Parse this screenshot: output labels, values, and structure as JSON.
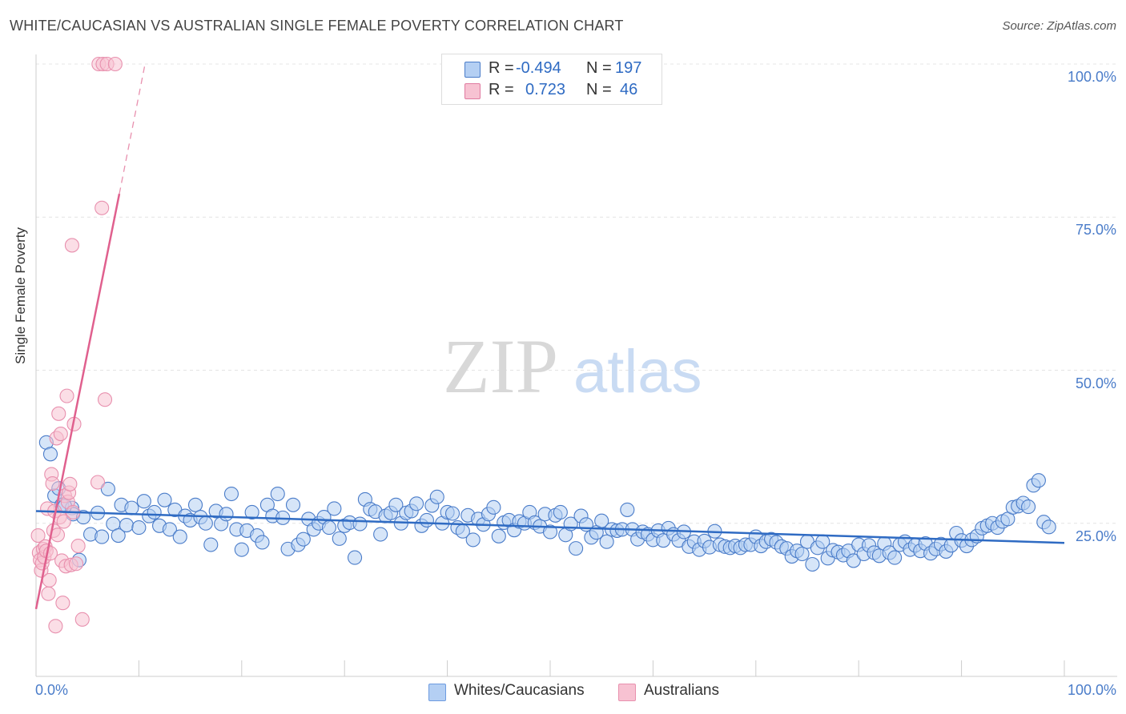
{
  "title": "WHITE/CAUCASIAN VS AUSTRALIAN SINGLE FEMALE POVERTY CORRELATION CHART",
  "source": "Source: ZipAtlas.com",
  "watermark": {
    "zip": "ZIP",
    "atlas": "atlas"
  },
  "stats": {
    "rows": [
      {
        "r_label": "R =",
        "r": "-0.494",
        "n_label": "N =",
        "n": "197",
        "color": "#a9c8f2",
        "border": "#4a7cc9"
      },
      {
        "r_label": "R =",
        "r": "0.723",
        "n_label": "N =",
        "n": "46",
        "color": "#f7b8cb",
        "border": "#e07aa0"
      }
    ]
  },
  "legend": [
    {
      "label": "Whites/Caucasians",
      "color": "#a9c8f2",
      "border": "#6d9be0"
    },
    {
      "label": "Australians",
      "color": "#f7c0d0",
      "border": "#e890ae"
    }
  ],
  "chart_data": {
    "type": "scatter",
    "title": "WHITE/CAUCASIAN VS AUSTRALIAN SINGLE FEMALE POVERTY CORRELATION CHART",
    "xlabel": "",
    "ylabel": "Single Female Poverty",
    "xlim": [
      0,
      100
    ],
    "ylim": [
      0,
      100
    ],
    "x_tick_labels": [
      "0.0%",
      "100.0%"
    ],
    "y_ticks": [
      {
        "value": 25,
        "label": "25.0%"
      },
      {
        "value": 50,
        "label": "50.0%"
      },
      {
        "value": 75,
        "label": "75.0%"
      },
      {
        "value": 100,
        "label": "100.0%"
      }
    ],
    "grid": true,
    "legend_position": "bottom",
    "colors": {
      "white": "#4a7cc9",
      "white_fill": "#b4cff3",
      "aus": "#e0608e",
      "aus_fill": "#f7c2d2"
    },
    "series": [
      {
        "name": "Whites/Caucasians",
        "trend": {
          "x": [
            0,
            100
          ],
          "y": [
            27.0,
            21.8
          ]
        },
        "points": [
          [
            1,
            38.2
          ],
          [
            1.4,
            36.3
          ],
          [
            1.8,
            29.5
          ],
          [
            2.2,
            30.7
          ],
          [
            2.5,
            28.0
          ],
          [
            3.5,
            27.5
          ],
          [
            3.6,
            26.5
          ],
          [
            4.2,
            19.0
          ],
          [
            4.6,
            26.0
          ],
          [
            5.3,
            23.2
          ],
          [
            6,
            26.7
          ],
          [
            6.4,
            22.8
          ],
          [
            7,
            30.6
          ],
          [
            7.5,
            24.9
          ],
          [
            8,
            23.0
          ],
          [
            8.3,
            28.0
          ],
          [
            8.8,
            24.7
          ],
          [
            9.3,
            27.5
          ],
          [
            10,
            24.3
          ],
          [
            10.5,
            28.6
          ],
          [
            11,
            26.2
          ],
          [
            11.5,
            26.8
          ],
          [
            12,
            24.6
          ],
          [
            12.5,
            28.8
          ],
          [
            13,
            24.0
          ],
          [
            13.5,
            27.2
          ],
          [
            14,
            22.8
          ],
          [
            14.5,
            26.2
          ],
          [
            15,
            25.5
          ],
          [
            15.5,
            28.0
          ],
          [
            16,
            26.0
          ],
          [
            16.5,
            25.0
          ],
          [
            17,
            21.5
          ],
          [
            17.5,
            27.0
          ],
          [
            18,
            24.9
          ],
          [
            18.5,
            26.5
          ],
          [
            19,
            29.8
          ],
          [
            19.5,
            24.0
          ],
          [
            20,
            20.7
          ],
          [
            20.5,
            23.8
          ],
          [
            21,
            26.8
          ],
          [
            21.5,
            23.0
          ],
          [
            22,
            21.9
          ],
          [
            22.5,
            28.0
          ],
          [
            23,
            26.2
          ],
          [
            23.5,
            29.8
          ],
          [
            24,
            25.9
          ],
          [
            24.5,
            20.8
          ],
          [
            25,
            28.0
          ],
          [
            25.5,
            21.5
          ],
          [
            26,
            22.4
          ],
          [
            26.5,
            25.7
          ],
          [
            27,
            24.0
          ],
          [
            27.5,
            25.0
          ],
          [
            28,
            26.0
          ],
          [
            28.5,
            24.3
          ],
          [
            29,
            27.4
          ],
          [
            29.5,
            22.5
          ],
          [
            30,
            24.6
          ],
          [
            30.5,
            25.1
          ],
          [
            31,
            19.4
          ],
          [
            31.5,
            24.9
          ],
          [
            32,
            28.9
          ],
          [
            32.5,
            27.3
          ],
          [
            33,
            26.9
          ],
          [
            33.5,
            23.2
          ],
          [
            34,
            26.2
          ],
          [
            34.5,
            26.7
          ],
          [
            35,
            28.0
          ],
          [
            35.5,
            25.0
          ],
          [
            36,
            26.7
          ],
          [
            36.5,
            27.0
          ],
          [
            37,
            28.2
          ],
          [
            37.5,
            24.6
          ],
          [
            38,
            25.5
          ],
          [
            38.5,
            27.9
          ],
          [
            39,
            29.3
          ],
          [
            39.5,
            25.0
          ],
          [
            40,
            26.8
          ],
          [
            40.5,
            26.6
          ],
          [
            41,
            24.3
          ],
          [
            41.5,
            23.7
          ],
          [
            42,
            26.3
          ],
          [
            42.5,
            22.3
          ],
          [
            43,
            25.7
          ],
          [
            43.5,
            24.8
          ],
          [
            44,
            26.5
          ],
          [
            44.5,
            27.6
          ],
          [
            45,
            22.9
          ],
          [
            45.5,
            25.1
          ],
          [
            46,
            25.5
          ],
          [
            46.5,
            23.9
          ],
          [
            47,
            25.3
          ],
          [
            47.5,
            25.0
          ],
          [
            48,
            26.8
          ],
          [
            48.5,
            25.1
          ],
          [
            49,
            24.5
          ],
          [
            49.5,
            26.5
          ],
          [
            50,
            23.6
          ],
          [
            50.5,
            26.3
          ],
          [
            51,
            26.8
          ],
          [
            51.5,
            23.1
          ],
          [
            52,
            24.9
          ],
          [
            52.5,
            20.9
          ],
          [
            53,
            26.2
          ],
          [
            53.5,
            24.8
          ],
          [
            54,
            22.7
          ],
          [
            54.5,
            23.5
          ],
          [
            55,
            25.4
          ],
          [
            55.5,
            22.0
          ],
          [
            56,
            24.0
          ],
          [
            56.5,
            23.8
          ],
          [
            57,
            24.0
          ],
          [
            57.5,
            27.2
          ],
          [
            58,
            24.0
          ],
          [
            58.5,
            22.4
          ],
          [
            59,
            23.6
          ],
          [
            59.5,
            23.2
          ],
          [
            60,
            22.3
          ],
          [
            60.5,
            23.8
          ],
          [
            61,
            22.2
          ],
          [
            61.5,
            24.2
          ],
          [
            62,
            23.2
          ],
          [
            62.5,
            22.2
          ],
          [
            63,
            23.6
          ],
          [
            63.5,
            21.2
          ],
          [
            64,
            22.0
          ],
          [
            64.5,
            20.7
          ],
          [
            65,
            22.1
          ],
          [
            65.5,
            21.1
          ],
          [
            66,
            23.7
          ],
          [
            66.5,
            21.5
          ],
          [
            67,
            21.2
          ],
          [
            67.5,
            21.0
          ],
          [
            68,
            21.3
          ],
          [
            68.5,
            21.0
          ],
          [
            69,
            21.5
          ],
          [
            69.5,
            21.5
          ],
          [
            70,
            22.8
          ],
          [
            70.5,
            21.3
          ],
          [
            71,
            22.0
          ],
          [
            71.5,
            22.4
          ],
          [
            72,
            21.9
          ],
          [
            72.5,
            21.2
          ],
          [
            73,
            20.9
          ],
          [
            73.5,
            19.6
          ],
          [
            74,
            20.5
          ],
          [
            74.5,
            20.0
          ],
          [
            75,
            22.0
          ],
          [
            75.5,
            18.3
          ],
          [
            76,
            21.0
          ],
          [
            76.5,
            22.0
          ],
          [
            77,
            19.3
          ],
          [
            77.5,
            20.6
          ],
          [
            78,
            20.3
          ],
          [
            78.5,
            19.8
          ],
          [
            79,
            20.5
          ],
          [
            79.5,
            18.9
          ],
          [
            80,
            21.5
          ],
          [
            80.5,
            20.0
          ],
          [
            81,
            21.4
          ],
          [
            81.5,
            20.2
          ],
          [
            82,
            19.7
          ],
          [
            82.5,
            21.7
          ],
          [
            83,
            20.2
          ],
          [
            83.5,
            19.4
          ],
          [
            84,
            21.5
          ],
          [
            84.5,
            22.0
          ],
          [
            85,
            20.7
          ],
          [
            85.5,
            21.4
          ],
          [
            86,
            20.5
          ],
          [
            86.5,
            21.7
          ],
          [
            87,
            20.1
          ],
          [
            87.5,
            20.8
          ],
          [
            88,
            21.6
          ],
          [
            88.5,
            20.4
          ],
          [
            89,
            21.4
          ],
          [
            89.5,
            23.4
          ],
          [
            90,
            22.2
          ],
          [
            90.5,
            21.3
          ],
          [
            91,
            22.3
          ],
          [
            91.5,
            22.9
          ],
          [
            92,
            24.2
          ],
          [
            92.5,
            24.6
          ],
          [
            93,
            25.0
          ],
          [
            93.5,
            24.3
          ],
          [
            94,
            25.3
          ],
          [
            94.5,
            25.7
          ],
          [
            95,
            27.6
          ],
          [
            95.5,
            27.8
          ],
          [
            96,
            28.3
          ],
          [
            96.5,
            27.7
          ],
          [
            97,
            31.2
          ],
          [
            97.5,
            32.0
          ],
          [
            98,
            25.2
          ],
          [
            98.5,
            24.4
          ],
          [
            2.8,
            27.8
          ]
        ]
      },
      {
        "name": "Australians",
        "trend": {
          "x": [
            0,
            8.1
          ],
          "y": [
            11.0,
            78.8
          ]
        },
        "trend_extension": {
          "x": [
            8.1,
            10.6
          ],
          "y": [
            78.8,
            100.0
          ]
        },
        "points": [
          [
            0.2,
            23.0
          ],
          [
            0.3,
            20.2
          ],
          [
            0.4,
            19.0
          ],
          [
            0.5,
            17.3
          ],
          [
            0.6,
            18.5
          ],
          [
            0.7,
            20.8
          ],
          [
            0.8,
            19.5
          ],
          [
            0.9,
            21.2
          ],
          [
            1,
            20.5
          ],
          [
            1.1,
            27.4
          ],
          [
            1.2,
            13.5
          ],
          [
            1.3,
            15.7
          ],
          [
            1.4,
            20.1
          ],
          [
            1.5,
            33.0
          ],
          [
            1.6,
            31.5
          ],
          [
            1.7,
            23.8
          ],
          [
            1.8,
            27.0
          ],
          [
            1.9,
            8.2
          ],
          [
            2,
            38.9
          ],
          [
            2.1,
            23.1
          ],
          [
            2.2,
            42.9
          ],
          [
            2.3,
            26.0
          ],
          [
            2.4,
            39.6
          ],
          [
            2.5,
            18.9
          ],
          [
            2.6,
            12.0
          ],
          [
            2.7,
            25.3
          ],
          [
            2.8,
            29.5
          ],
          [
            2.9,
            18.0
          ],
          [
            3,
            45.8
          ],
          [
            3.1,
            28.5
          ],
          [
            3.2,
            30.0
          ],
          [
            3.3,
            31.4
          ],
          [
            3.4,
            18.2
          ],
          [
            3.5,
            70.4
          ],
          [
            3.6,
            26.8
          ],
          [
            3.7,
            41.2
          ],
          [
            3.9,
            18.4
          ],
          [
            4.1,
            21.3
          ],
          [
            4.5,
            9.3
          ],
          [
            6,
            31.7
          ],
          [
            6.4,
            76.5
          ],
          [
            6.7,
            45.2
          ],
          [
            6.1,
            100
          ],
          [
            6.5,
            100
          ],
          [
            6.9,
            100
          ],
          [
            7.7,
            100
          ]
        ]
      }
    ]
  }
}
